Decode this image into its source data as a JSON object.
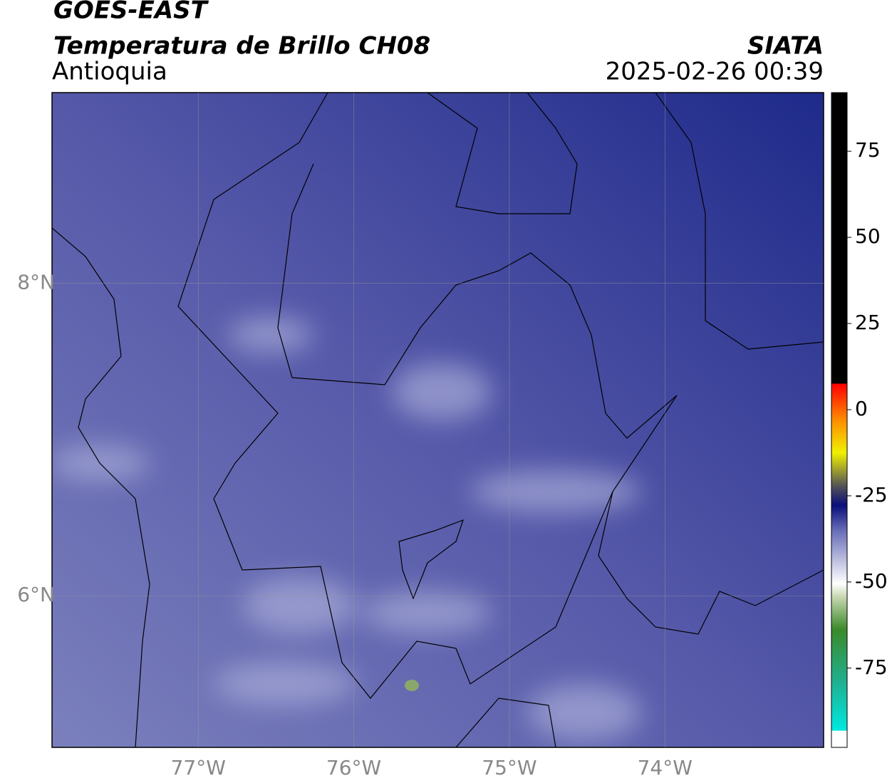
{
  "header": {
    "title": "GOES-EAST",
    "subtitle": "Temperatura de Brillo CH08",
    "region": "Antioquia",
    "source": "SIATA",
    "datetime": "2025-02-26 00:39"
  },
  "map": {
    "xlim": [
      -77.94,
      -72.98
    ],
    "ylim": [
      5.03,
      9.22
    ],
    "xticks": [
      {
        "value": -77,
        "label": "77°W"
      },
      {
        "value": -76,
        "label": "76°W"
      },
      {
        "value": -75,
        "label": "75°W"
      },
      {
        "value": -74,
        "label": "74°W"
      }
    ],
    "yticks": [
      {
        "value": 8,
        "label": "8°N"
      },
      {
        "value": 6,
        "label": "6°N"
      }
    ],
    "grid": true
  },
  "colorbar": {
    "lim": [
      -98,
      92
    ],
    "ticks": [
      75,
      50,
      25,
      0,
      -25,
      -50,
      -75
    ]
  }
}
